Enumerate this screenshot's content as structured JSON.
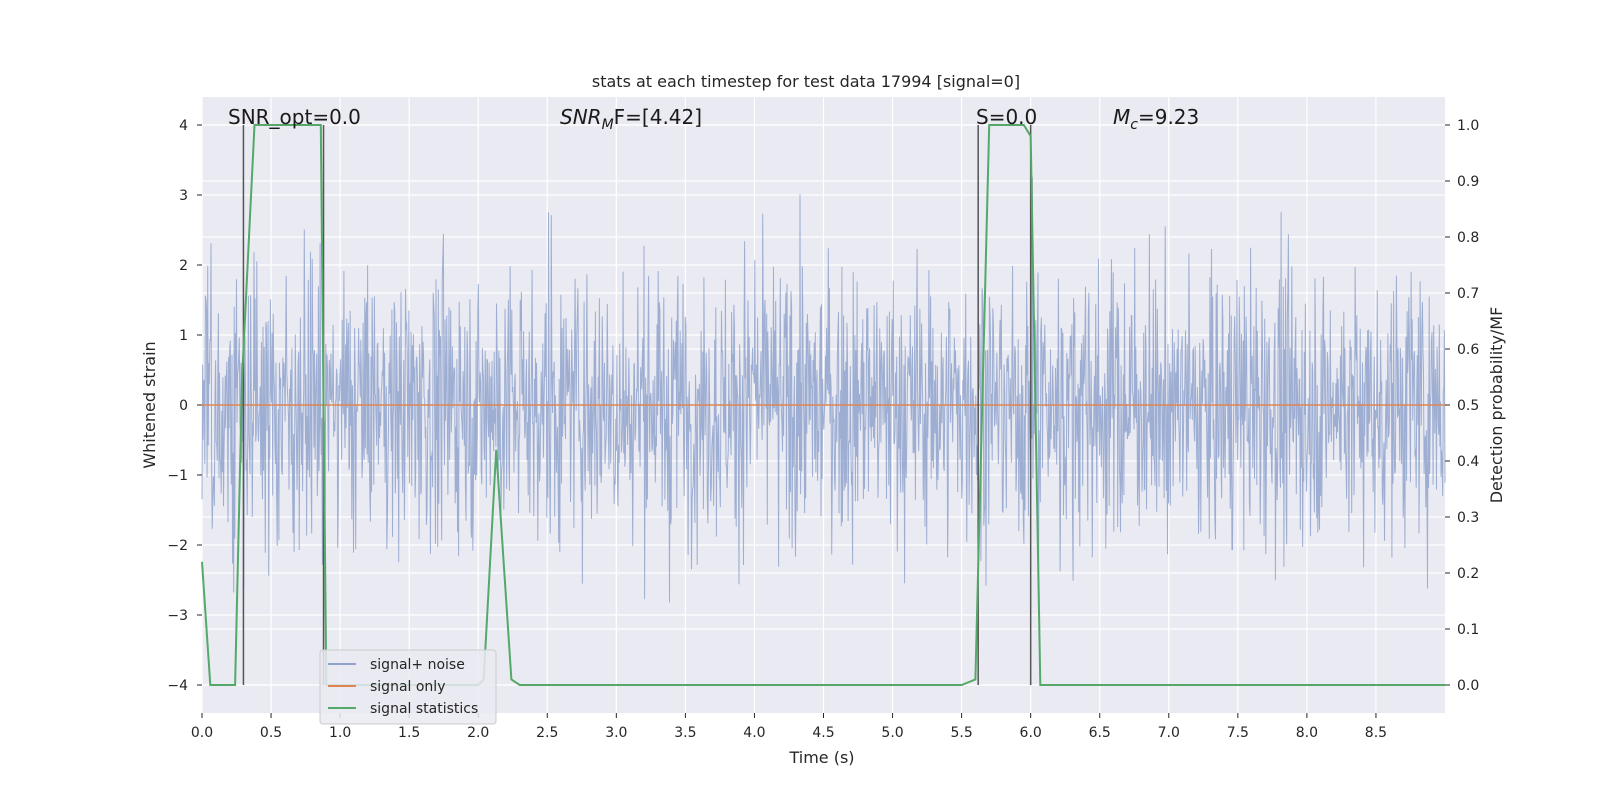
{
  "chart_data": {
    "type": "line",
    "title": "stats at each timestep for test data 17994 [signal=0]",
    "xlabel": "Time (s)",
    "ylabel": "Whitened strain",
    "y2label": "Detection probability/MF",
    "xlim": [
      0,
      9.0
    ],
    "ylim": [
      -4.4,
      4.4
    ],
    "y2lim": [
      -0.05,
      1.05
    ],
    "xticks": [
      "0.0",
      "0.5",
      "1.0",
      "1.5",
      "2.0",
      "2.5",
      "3.0",
      "3.5",
      "4.0",
      "4.5",
      "5.0",
      "5.5",
      "6.0",
      "6.5",
      "7.0",
      "7.5",
      "8.0",
      "8.5"
    ],
    "yticks": [
      "−4",
      "−3",
      "−2",
      "−1",
      "0",
      "1",
      "2",
      "3",
      "4"
    ],
    "y2ticks": [
      "0.0",
      "0.1",
      "0.2",
      "0.3",
      "0.4",
      "0.5",
      "0.6",
      "0.7",
      "0.8",
      "0.9",
      "1.0"
    ],
    "grid": true,
    "annotations": {
      "snr_opt": "SNR_opt=0.0",
      "snr_mf_base": "SNR",
      "snr_mf_sub": "M",
      "snr_mf_rest": "F=[4.42]",
      "s_label": "S=0.0",
      "mc_base": "M",
      "mc_sub": "c",
      "mc_rest": "=9.23"
    },
    "series": [
      {
        "name": "signal+ noise",
        "color": "#8fa3cc",
        "note": "dense noise, amplitude mostly within ±2.5 with spikes to about ±4"
      },
      {
        "name": "signal only",
        "color": "#dd8452",
        "values_const": 0
      },
      {
        "name": "signal statistics",
        "color": "#55a868",
        "axis": "right",
        "x": [
          0.0,
          0.06,
          0.24,
          0.29,
          0.38,
          0.86,
          0.9,
          0.95,
          2.0,
          2.04,
          2.13,
          2.24,
          2.3,
          3.4,
          5.5,
          5.6,
          5.7,
          5.95,
          6.0,
          6.07,
          6.15,
          9.0
        ],
        "values": [
          0.22,
          0.0,
          0.0,
          0.55,
          1.0,
          1.0,
          0.0,
          0.0,
          0.0,
          0.01,
          0.42,
          0.01,
          0.0,
          0.0,
          0.0,
          0.01,
          1.0,
          1.0,
          0.98,
          0.0,
          0.0,
          0.0
        ]
      }
    ],
    "vlines": [
      0.3,
      0.88,
      5.62,
      6.0
    ],
    "legend": {
      "position": "lower-left",
      "items": [
        "signal+ noise",
        "signal only",
        "signal statistics"
      ]
    }
  }
}
